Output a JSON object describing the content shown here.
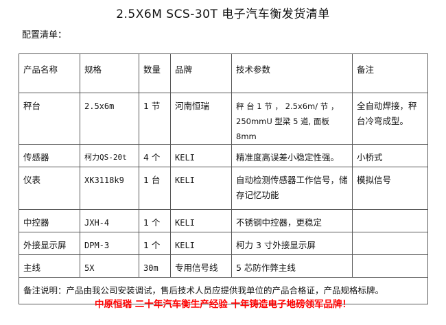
{
  "title": "2.5X6M SCS-30T 电子汽车衡发货清单",
  "subtitle": "配置清单：",
  "table": {
    "headers": [
      "产品名称",
      "规格",
      "数量",
      "品牌",
      "技术参数",
      "备注"
    ],
    "rows": [
      [
        "秤台",
        "2.5x6m",
        "1 节",
        "河南恒瑞",
        "秤 台 1 节 ， 2.5x6m/ 节 ， 250mmU 型梁 5 道, 面板 8mm",
        "全自动焊接，秤台冷弯成型。"
      ],
      [
        "传感器",
        "柯力QS-20t",
        "4 个",
        "KELI",
        "精准度高误差小稳定性强。",
        "小桥式"
      ],
      [
        "仪表",
        "XK3118k9",
        "1 台",
        "KELI",
        "自动检测传感器工作信号，储存记忆功能",
        "模拟信号"
      ],
      [
        "中控器",
        "JXH-4",
        "1 个",
        "KELI",
        "不锈钢中控器，更稳定",
        ""
      ],
      [
        "外接显示屏",
        "DPM-3",
        "1 个",
        "KELI",
        "柯力 3 寸外接显示屏",
        ""
      ],
      [
        "主线",
        "5X",
        "30m",
        "专用信号线",
        "5 芯防作弊主线",
        ""
      ]
    ],
    "note": "备注说明：产品由我公司安装调试，售后技术人员应提供我单位的产品合格证，产品规格标牌。"
  },
  "slogan": "中原恒瑞  二十年汽车衡生产经验  十年铸造电子地磅领军品牌！",
  "colors": {
    "slogan": "#ff0000",
    "border": "#555555"
  }
}
